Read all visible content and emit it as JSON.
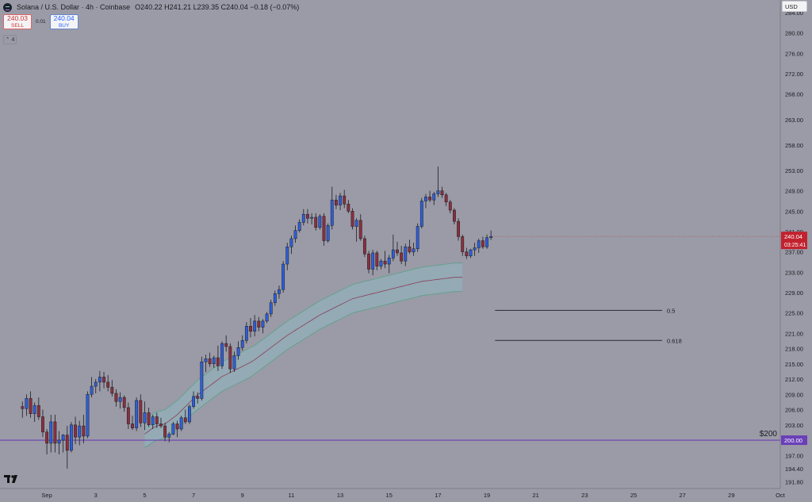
{
  "header": {
    "title": "Solana / U.S. Dollar · 4h · Coinbase",
    "ohlc": "O240.22 H241.21 L239.35 C240.04 −0.18 (−0.07%)",
    "sell_price": "240.03",
    "sell_label": "SELL",
    "spread": "0.01",
    "buy_price": "240.04",
    "buy_label": "BUY",
    "collapse_label": "⌃ 4"
  },
  "currency_button": "USD",
  "colors": {
    "background": "#9a9ba6",
    "bull": "#2e5fd9",
    "bear": "#8c2f3f",
    "band_fill": "#8fb6c0",
    "band_edge": "#5aa08a",
    "band_mid": "#8a3f5a",
    "support_line": "#6a3fb8",
    "price_badge": "#c2222e"
  },
  "chart_data": {
    "type": "candlestick",
    "title": "Solana / U.S. Dollar · 4h · Coinbase",
    "y_range": [
      190.5,
      286.5
    ],
    "y_ticks": [
      "284.00",
      "280.00",
      "276.00",
      "272.00",
      "268.00",
      "263.00",
      "258.00",
      "253.00",
      "249.00",
      "245.00",
      "241.00",
      "237.00",
      "233.00",
      "229.00",
      "225.00",
      "221.00",
      "218.00",
      "215.00",
      "212.00",
      "209.00",
      "206.00",
      "203.00",
      "200.00",
      "197.00",
      "194.40",
      "191.80"
    ],
    "x_ticks": [
      "Sep",
      "3",
      "5",
      "7",
      "9",
      "11",
      "13",
      "15",
      "17",
      "19",
      "21",
      "23",
      "25",
      "27",
      "29",
      "Oct"
    ],
    "x_range_bars": [
      -5.5,
      186
    ],
    "x_tick_bars": [
      6,
      18,
      30,
      42,
      54,
      66,
      78,
      90,
      102,
      114,
      126,
      138,
      150,
      162,
      174,
      186
    ],
    "bars_per_day": 6,
    "candles": [
      [
        206.6,
        207.6,
        204.4,
        206.2
      ],
      [
        206.2,
        209,
        204.8,
        208.2
      ],
      [
        208.2,
        209.6,
        204.4,
        205.2
      ],
      [
        205.2,
        207.4,
        203.6,
        206.8
      ],
      [
        206.8,
        208.4,
        204,
        204.6
      ],
      [
        204.6,
        206,
        200.6,
        201.6
      ],
      [
        201.6,
        202.2,
        197.2,
        199.4
      ],
      [
        199.4,
        205,
        197.6,
        203.6
      ],
      [
        203.6,
        205,
        197.6,
        199.4
      ],
      [
        199.4,
        201.8,
        197.2,
        200
      ],
      [
        200,
        201.2,
        197.6,
        201
      ],
      [
        201,
        202.8,
        194.4,
        198
      ],
      [
        198,
        203.6,
        197.6,
        203
      ],
      [
        203,
        204.6,
        199.2,
        200.6
      ],
      [
        200.6,
        203.8,
        199,
        202.8
      ],
      [
        202.8,
        205,
        199.4,
        200.8
      ],
      [
        200.8,
        209.6,
        200.4,
        209
      ],
      [
        209,
        212.4,
        208.4,
        210.6
      ],
      [
        210.6,
        212,
        209.2,
        211.4
      ],
      [
        211.4,
        213.6,
        209.6,
        212.4
      ],
      [
        212.4,
        213.4,
        210.2,
        211.4
      ],
      [
        211.4,
        212.8,
        209.6,
        210.4
      ],
      [
        210.4,
        211.8,
        208.6,
        209.2
      ],
      [
        209.2,
        210,
        206.6,
        207.6
      ],
      [
        207.6,
        209.4,
        206.2,
        208.4
      ],
      [
        208.4,
        208.8,
        205.6,
        206.4
      ],
      [
        206.4,
        207.4,
        202.2,
        203.2
      ],
      [
        203.2,
        204.8,
        202,
        202.4
      ],
      [
        202.4,
        208.4,
        201.8,
        207.8
      ],
      [
        207.8,
        209,
        202.6,
        203.4
      ],
      [
        203.4,
        207.6,
        202,
        205.4
      ],
      [
        205.4,
        206.4,
        202.6,
        203
      ],
      [
        203,
        205,
        202.2,
        204.6
      ],
      [
        204.6,
        205.4,
        202.4,
        203.2
      ],
      [
        203.2,
        204.4,
        202.4,
        202.8
      ],
      [
        202.8,
        203.4,
        199.8,
        200.6
      ],
      [
        200.6,
        201.6,
        199.6,
        201.2
      ],
      [
        201.2,
        203.6,
        201,
        203.2
      ],
      [
        203.2,
        203.8,
        200.6,
        202.2
      ],
      [
        202.2,
        204.8,
        201.8,
        204.4
      ],
      [
        204.4,
        206,
        203.2,
        203.6
      ],
      [
        203.6,
        207,
        203.2,
        206.6
      ],
      [
        206.6,
        209.6,
        206.2,
        208.6
      ],
      [
        208.6,
        209.4,
        207.2,
        208.2
      ],
      [
        208.2,
        216.4,
        207.8,
        215.4
      ],
      [
        215.4,
        216.8,
        213.4,
        216
      ],
      [
        216,
        217.2,
        214.4,
        215
      ],
      [
        215,
        216.6,
        214.2,
        216.2
      ],
      [
        216.2,
        218.6,
        213.6,
        214.6
      ],
      [
        214.6,
        219.4,
        214,
        219
      ],
      [
        219,
        220.6,
        217.4,
        218.4
      ],
      [
        218.4,
        219,
        213.2,
        214
      ],
      [
        214,
        217.4,
        213.4,
        216.6
      ],
      [
        216.6,
        219.4,
        215.8,
        218.2
      ],
      [
        218.2,
        220.6,
        217.6,
        219.6
      ],
      [
        219.6,
        223.2,
        219,
        222.4
      ],
      [
        222.4,
        224,
        220.2,
        221.4
      ],
      [
        221.4,
        224.6,
        220.4,
        223.4
      ],
      [
        223.4,
        224.2,
        221.4,
        222.2
      ],
      [
        222.2,
        223.8,
        221,
        223.4
      ],
      [
        223.4,
        225.2,
        223,
        224.8
      ],
      [
        224.8,
        227.6,
        224.2,
        227
      ],
      [
        227,
        229.4,
        226.4,
        228.8
      ],
      [
        228.8,
        230.4,
        227.8,
        229.6
      ],
      [
        229.6,
        235.2,
        229,
        234.6
      ],
      [
        234.6,
        238.8,
        233.4,
        238
      ],
      [
        238,
        240.2,
        236.6,
        239.6
      ],
      [
        239.6,
        242.2,
        238.8,
        241.2
      ],
      [
        241.2,
        243.4,
        240.8,
        242.8
      ],
      [
        242.8,
        245.4,
        242.2,
        244.4
      ],
      [
        244.4,
        245.4,
        242.6,
        243.6
      ],
      [
        243.6,
        244.6,
        242.4,
        243.8
      ],
      [
        243.8,
        244.6,
        241.2,
        241.8
      ],
      [
        241.8,
        244.4,
        241.4,
        244
      ],
      [
        244,
        244.6,
        238.2,
        239.2
      ],
      [
        239.2,
        242.6,
        238.8,
        242.2
      ],
      [
        242.2,
        249.8,
        241.4,
        247.2
      ],
      [
        247.2,
        248.2,
        245.4,
        246.2
      ],
      [
        246.2,
        248.6,
        245.2,
        248
      ],
      [
        248,
        249.2,
        245.6,
        246.4
      ],
      [
        246.4,
        247.2,
        244.6,
        245
      ],
      [
        245,
        245.6,
        241.4,
        242
      ],
      [
        242,
        243.6,
        239,
        243.2
      ],
      [
        243.2,
        244.4,
        239.2,
        239.6
      ],
      [
        239.6,
        240.2,
        236,
        236.6
      ],
      [
        236.6,
        237.2,
        232.8,
        233.6
      ],
      [
        233.6,
        237.4,
        232.4,
        236.8
      ],
      [
        236.8,
        237.2,
        233.4,
        234.2
      ],
      [
        234.2,
        235.6,
        233.6,
        235.2
      ],
      [
        235.2,
        237.2,
        233.8,
        234.6
      ],
      [
        234.6,
        236.4,
        232.8,
        235.8
      ],
      [
        235.8,
        240.4,
        235.2,
        237.4
      ],
      [
        237.4,
        239,
        236.2,
        236.8
      ],
      [
        236.8,
        238.2,
        234.6,
        235.2
      ],
      [
        235.2,
        238.6,
        234.2,
        238
      ],
      [
        238,
        239.4,
        236.6,
        237
      ],
      [
        237,
        238.8,
        236.2,
        237.6
      ],
      [
        237.6,
        242.6,
        237,
        242
      ],
      [
        242,
        247.6,
        241.6,
        247
      ],
      [
        247,
        248.4,
        245.6,
        247.8
      ],
      [
        247.8,
        249,
        246.8,
        247.2
      ],
      [
        247.2,
        248.8,
        246.2,
        248.4
      ],
      [
        248.4,
        253.8,
        247.8,
        249
      ],
      [
        249,
        249.8,
        247.6,
        248.2
      ],
      [
        248.2,
        248.6,
        246,
        246.8
      ],
      [
        246.8,
        247.2,
        244.6,
        245.2
      ],
      [
        245.2,
        245.6,
        242.4,
        243
      ],
      [
        243,
        243.6,
        239.2,
        240
      ],
      [
        240,
        240.4,
        236.2,
        237
      ],
      [
        237,
        237.8,
        235.6,
        236.2
      ],
      [
        236.2,
        237.6,
        235.8,
        237.4
      ],
      [
        237.4,
        238.8,
        236.2,
        237.8
      ],
      [
        237.8,
        239.6,
        236.8,
        239.2
      ],
      [
        239.2,
        240,
        237.6,
        238
      ],
      [
        238,
        240.4,
        237.6,
        239.8
      ],
      [
        239.8,
        241.21,
        239.35,
        240.04
      ]
    ],
    "band_start_bar": 30,
    "band_upper": [
      203.8,
      204.6,
      205.2,
      205.6,
      205.8,
      206,
      206.6,
      207.2,
      207.8,
      208.6,
      209.4,
      210.2,
      211,
      211.8,
      212.4,
      213,
      213.6,
      214.2,
      214.8,
      215.4,
      215.8,
      216.2,
      216.6,
      217,
      217.4,
      217.8,
      218.2,
      218.6,
      219.2,
      219.8,
      220.4,
      221,
      221.6,
      222.2,
      222.8,
      223.4,
      223.9,
      224.4,
      224.9,
      225.4,
      225.9,
      226.4,
      226.9,
      227.4,
      227.8,
      228.2,
      228.6,
      229,
      229.4,
      229.8,
      230.2,
      230.6,
      230.8,
      231,
      231.2,
      231.4,
      231.6,
      231.8,
      232,
      232.2,
      232.4,
      232.6,
      232.8,
      233,
      233.2,
      233.4,
      233.6,
      233.8,
      234,
      234.1,
      234.2,
      234.3,
      234.4,
      234.5,
      234.6,
      234.7,
      234.8,
      234.8,
      234.8
    ],
    "band_mid": [
      201.2,
      201.8,
      202.4,
      202.8,
      203,
      203.2,
      203.8,
      204.4,
      205,
      205.8,
      206.6,
      207.4,
      208.2,
      208.9,
      209.5,
      210.1,
      210.7,
      211.3,
      211.9,
      212.5,
      212.9,
      213.3,
      213.7,
      214.1,
      214.5,
      214.9,
      215.3,
      215.8,
      216.4,
      217,
      217.6,
      218.2,
      218.8,
      219.4,
      220,
      220.6,
      221.1,
      221.6,
      222.1,
      222.6,
      223.1,
      223.6,
      224.1,
      224.6,
      225,
      225.4,
      225.8,
      226.2,
      226.6,
      227,
      227.4,
      227.8,
      228,
      228.2,
      228.4,
      228.6,
      228.8,
      229,
      229.2,
      229.4,
      229.6,
      229.8,
      230,
      230.2,
      230.4,
      230.6,
      230.8,
      231,
      231.2,
      231.3,
      231.4,
      231.5,
      231.6,
      231.7,
      231.8,
      231.9,
      232,
      232,
      232
    ],
    "band_lower": [
      198.6,
      199,
      199.6,
      200,
      200.2,
      200.4,
      201,
      201.6,
      202.2,
      203,
      203.8,
      204.6,
      205.4,
      206,
      206.6,
      207.2,
      207.8,
      208.4,
      209,
      209.6,
      210,
      210.4,
      210.8,
      211.2,
      211.6,
      212,
      212.4,
      213,
      213.6,
      214.2,
      214.8,
      215.4,
      216,
      216.6,
      217.2,
      217.8,
      218.3,
      218.8,
      219.3,
      219.8,
      220.3,
      220.8,
      221.3,
      221.8,
      222.2,
      222.6,
      223,
      223.4,
      223.8,
      224.2,
      224.6,
      225,
      225.2,
      225.4,
      225.6,
      225.8,
      226,
      226.2,
      226.4,
      226.6,
      226.8,
      227,
      227.2,
      227.4,
      227.6,
      227.8,
      228,
      228.2,
      228.4,
      228.5,
      228.6,
      228.7,
      228.8,
      228.9,
      229,
      229.1,
      229.2,
      229.2,
      229.2
    ],
    "fib_levels": [
      {
        "label": "0.5",
        "price": 225.5,
        "from_bar": 116,
        "to_bar": 157
      },
      {
        "label": "0.618",
        "price": 219.6,
        "from_bar": 116,
        "to_bar": 157
      }
    ],
    "support": {
      "price": 200.0,
      "label": "$200",
      "axis_label": "200.00"
    },
    "last_price": {
      "value": "240.04",
      "countdown": "03:25:41",
      "price": 240.04
    }
  }
}
